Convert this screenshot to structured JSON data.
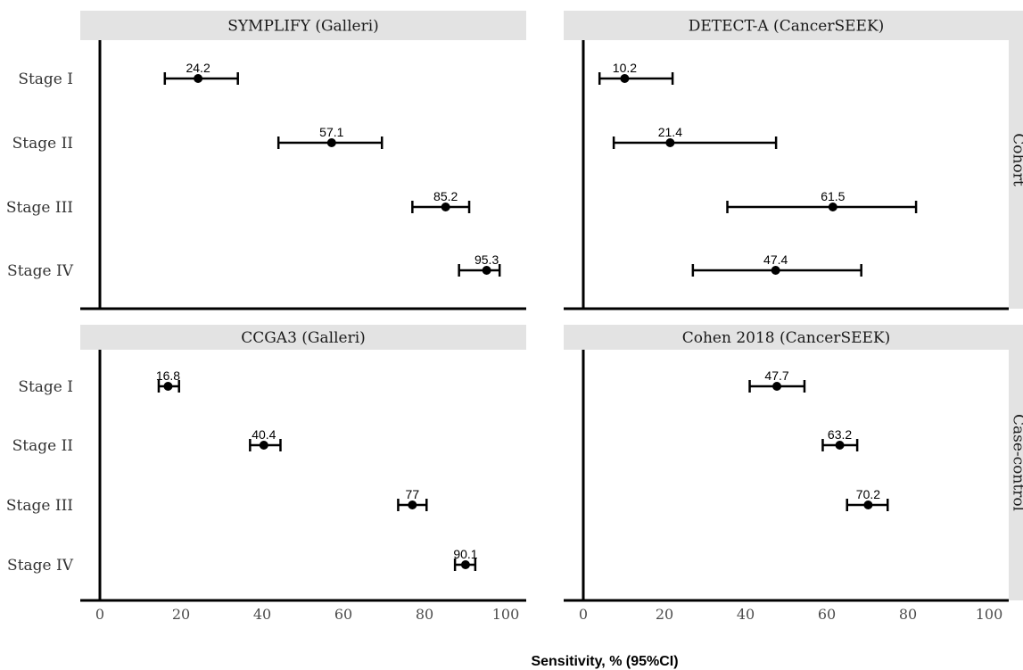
{
  "chart_data": {
    "type": "scatter",
    "title": "",
    "xlabel": "Sensitivity, % (95%CI)",
    "ylabel": "",
    "xlim": [
      0,
      100
    ],
    "x_ticks": [
      "0",
      "20",
      "40",
      "60",
      "80",
      "100"
    ],
    "categories": [
      "Stage I",
      "Stage II",
      "Stage III",
      "Stage IV"
    ],
    "facet_rows": [
      "Cohort",
      "Case-control"
    ],
    "panels": [
      {
        "title": "SYMPLIFY (Galleri)",
        "row": "Cohort",
        "points": [
          {
            "stage": "Stage I",
            "value": 24.2,
            "label": "24.2",
            "ci": [
              16,
              34
            ]
          },
          {
            "stage": "Stage II",
            "value": 57.1,
            "label": "57.1",
            "ci": [
              44,
              69.5
            ]
          },
          {
            "stage": "Stage III",
            "value": 85.2,
            "label": "85.2",
            "ci": [
              77,
              91
            ]
          },
          {
            "stage": "Stage IV",
            "value": 95.3,
            "label": "95.3",
            "ci": [
              88.5,
              98.5
            ]
          }
        ]
      },
      {
        "title": "DETECT-A (CancerSEEK)",
        "row": "Cohort",
        "points": [
          {
            "stage": "Stage I",
            "value": 10.2,
            "label": "10.2",
            "ci": [
              4,
              22
            ]
          },
          {
            "stage": "Stage II",
            "value": 21.4,
            "label": "21.4",
            "ci": [
              7.5,
              47.5
            ]
          },
          {
            "stage": "Stage III",
            "value": 61.5,
            "label": "61.5",
            "ci": [
              35.5,
              82
            ]
          },
          {
            "stage": "Stage IV",
            "value": 47.4,
            "label": "47.4",
            "ci": [
              27,
              68.5
            ]
          }
        ]
      },
      {
        "title": "CCGA3 (Galleri)",
        "row": "Case-control",
        "points": [
          {
            "stage": "Stage I",
            "value": 16.8,
            "label": "16.8",
            "ci": [
              14.5,
              19.5
            ]
          },
          {
            "stage": "Stage II",
            "value": 40.4,
            "label": "40.4",
            "ci": [
              37,
              44.5
            ]
          },
          {
            "stage": "Stage III",
            "value": 77,
            "label": "77",
            "ci": [
              73.5,
              80.5
            ]
          },
          {
            "stage": "Stage IV",
            "value": 90.1,
            "label": "90.1",
            "ci": [
              87.5,
              92.5
            ]
          }
        ]
      },
      {
        "title": "Cohen 2018 (CancerSEEK)",
        "row": "Case-control",
        "points": [
          {
            "stage": "Stage I",
            "value": 47.7,
            "label": "47.7",
            "ci": [
              41,
              54.5
            ]
          },
          {
            "stage": "Stage II",
            "value": 63.2,
            "label": "63.2",
            "ci": [
              59,
              67.5
            ]
          },
          {
            "stage": "Stage III",
            "value": 70.2,
            "label": "70.2",
            "ci": [
              65,
              75
            ]
          }
        ]
      }
    ],
    "grid": false,
    "legend": "none",
    "colors": {
      "strip": "#e3e3e3",
      "point": "#000000",
      "axis": "#000000",
      "text": "#333333"
    }
  }
}
